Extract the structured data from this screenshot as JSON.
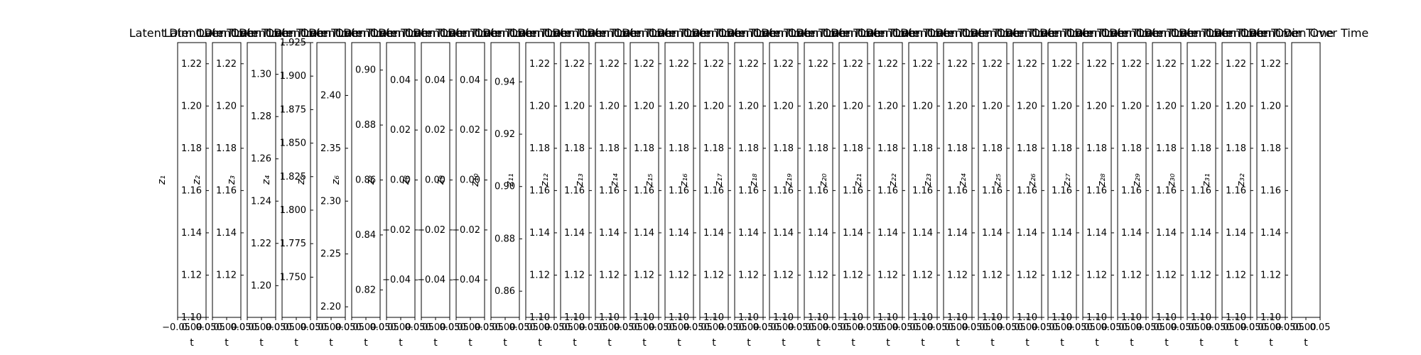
{
  "chart_data": {
    "type": "line",
    "title": "Latent Dim Over Time",
    "xlabel": "t",
    "xlim": [
      -0.05,
      0.05
    ],
    "xtick_labels": [
      "−0.05",
      "0.00",
      "0.05"
    ],
    "panels": [
      {
        "title": "Latent Dim Over Time",
        "ylabel": "z₁",
        "ylim": [
          1.1,
          1.23
        ],
        "yticks": [
          "1.10",
          "1.12",
          "1.14",
          "1.16",
          "1.18",
          "1.20",
          "1.22"
        ]
      },
      {
        "title": "Latent Dim Over Time",
        "ylabel": "z₂",
        "ylim": [
          1.1,
          1.23
        ],
        "yticks": [
          "1.12",
          "1.14",
          "1.16",
          "1.18",
          "1.20",
          "1.22"
        ]
      },
      {
        "title": "Latent Dim Over Time",
        "ylabel": "z₃",
        "ylim": [
          1.185,
          1.315
        ],
        "yticks": [
          "1.20",
          "1.22",
          "1.24",
          "1.26",
          "1.28",
          "1.30"
        ]
      },
      {
        "title": "Latent Dim Over Time",
        "ylabel": "z₄",
        "ylim": [
          1.72,
          1.925
        ],
        "yticks": [
          "1.750",
          "1.775",
          "1.800",
          "1.825",
          "1.850",
          "1.875",
          "1.900",
          "1.925"
        ]
      },
      {
        "title": "Latent Dim Over Time",
        "ylabel": "z₅",
        "ylim": [
          2.19,
          2.45
        ],
        "yticks": [
          "2.20",
          "2.25",
          "2.30",
          "2.35",
          "2.40"
        ]
      },
      {
        "title": "Latent Dim Over Time",
        "ylabel": "z₆",
        "ylim": [
          0.81,
          0.91
        ],
        "yticks": [
          "0.82",
          "0.84",
          "0.86",
          "0.88",
          "0.90"
        ]
      },
      {
        "title": "Latent Dim Over Time",
        "ylabel": "z₇",
        "ylim": [
          -0.055,
          0.055
        ],
        "yticks": [
          "−0.04",
          "−0.02",
          "0.00",
          "0.02",
          "0.04"
        ]
      },
      {
        "title": "Latent Dim Over Time",
        "ylabel": "z₈",
        "ylim": [
          -0.055,
          0.055
        ],
        "yticks": [
          "−0.04",
          "−0.02",
          "0.00",
          "0.02",
          "0.04"
        ]
      },
      {
        "title": "Latent Dim Over Time",
        "ylabel": "z₉",
        "ylim": [
          -0.055,
          0.055
        ],
        "yticks": [
          "−0.04",
          "−0.02",
          "0.00",
          "0.02",
          "0.04"
        ]
      },
      {
        "title": "Latent Dim Over Time",
        "ylabel": "z₁₀",
        "ylim": [
          0.85,
          0.955
        ],
        "yticks": [
          "0.86",
          "0.88",
          "0.90",
          "0.92",
          "0.94"
        ]
      },
      {
        "title": "Latent Dim Over Time",
        "ylabel": "z₁₁",
        "ylim": [
          1.1,
          1.23
        ],
        "yticks": [
          "1.10",
          "1.12",
          "1.14",
          "1.16",
          "1.18",
          "1.20",
          "1.22"
        ]
      },
      {
        "title": "Latent Dim Over Time",
        "ylabel": "z₁₂",
        "ylim": [
          1.1,
          1.23
        ],
        "yticks": [
          "1.10",
          "1.12",
          "1.14",
          "1.16",
          "1.18",
          "1.20",
          "1.22"
        ]
      },
      {
        "title": "Latent Dim Over Time",
        "ylabel": "z₁₃",
        "ylim": [
          1.1,
          1.23
        ],
        "yticks": [
          "1.10",
          "1.12",
          "1.14",
          "1.16",
          "1.18",
          "1.20",
          "1.22"
        ]
      },
      {
        "title": "Latent Dim Over Time",
        "ylabel": "z₁₄",
        "ylim": [
          1.1,
          1.23
        ],
        "yticks": [
          "1.10",
          "1.12",
          "1.14",
          "1.16",
          "1.18",
          "1.20",
          "1.22"
        ]
      },
      {
        "title": "Latent Dim Over Time",
        "ylabel": "z₁₅",
        "ylim": [
          1.1,
          1.23
        ],
        "yticks": [
          "1.10",
          "1.12",
          "1.14",
          "1.16",
          "1.18",
          "1.20",
          "1.22"
        ]
      },
      {
        "title": "Latent Dim Over Time",
        "ylabel": "z₁₆",
        "ylim": [
          1.1,
          1.23
        ],
        "yticks": [
          "1.10",
          "1.12",
          "1.14",
          "1.16",
          "1.18",
          "1.20",
          "1.22"
        ]
      },
      {
        "title": "Latent Dim Over Time",
        "ylabel": "z₁₇",
        "ylim": [
          1.1,
          1.23
        ],
        "yticks": [
          "1.10",
          "1.12",
          "1.14",
          "1.16",
          "1.18",
          "1.20",
          "1.22"
        ]
      },
      {
        "title": "Latent Dim Over Time",
        "ylabel": "z₁₈",
        "ylim": [
          1.1,
          1.23
        ],
        "yticks": [
          "1.10",
          "1.12",
          "1.14",
          "1.16",
          "1.18",
          "1.20",
          "1.22"
        ]
      },
      {
        "title": "Latent Dim Over Time",
        "ylabel": "z₁₉",
        "ylim": [
          1.1,
          1.23
        ],
        "yticks": [
          "1.10",
          "1.12",
          "1.14",
          "1.16",
          "1.18",
          "1.20",
          "1.22"
        ]
      },
      {
        "title": "Latent Dim Over Time",
        "ylabel": "z₂₀",
        "ylim": [
          1.1,
          1.23
        ],
        "yticks": [
          "1.10",
          "1.12",
          "1.14",
          "1.16",
          "1.18",
          "1.20",
          "1.22"
        ]
      },
      {
        "title": "Latent Dim Over Time",
        "ylabel": "z₂₁",
        "ylim": [
          1.1,
          1.23
        ],
        "yticks": [
          "1.10",
          "1.12",
          "1.14",
          "1.16",
          "1.18",
          "1.20",
          "1.22"
        ]
      },
      {
        "title": "Latent Dim Over Time",
        "ylabel": "z₂₂",
        "ylim": [
          1.1,
          1.23
        ],
        "yticks": [
          "1.10",
          "1.12",
          "1.14",
          "1.16",
          "1.18",
          "1.20",
          "1.22"
        ]
      },
      {
        "title": "Latent Dim Over Time",
        "ylabel": "z₂₃",
        "ylim": [
          1.1,
          1.23
        ],
        "yticks": [
          "1.10",
          "1.12",
          "1.14",
          "1.16",
          "1.18",
          "1.20",
          "1.22"
        ]
      },
      {
        "title": "Latent Dim Over Time",
        "ylabel": "z₂₄",
        "ylim": [
          1.1,
          1.23
        ],
        "yticks": [
          "1.10",
          "1.12",
          "1.14",
          "1.16",
          "1.18",
          "1.20",
          "1.22"
        ]
      },
      {
        "title": "Latent Dim Over Time",
        "ylabel": "z₂₅",
        "ylim": [
          1.1,
          1.23
        ],
        "yticks": [
          "1.10",
          "1.12",
          "1.14",
          "1.16",
          "1.18",
          "1.20",
          "1.22"
        ]
      },
      {
        "title": "Latent Dim Over Time",
        "ylabel": "z₂₆",
        "ylim": [
          1.1,
          1.23
        ],
        "yticks": [
          "1.10",
          "1.12",
          "1.14",
          "1.16",
          "1.18",
          "1.20",
          "1.22"
        ]
      },
      {
        "title": "Latent Dim Over Time",
        "ylabel": "z₂₇",
        "ylim": [
          1.1,
          1.23
        ],
        "yticks": [
          "1.10",
          "1.12",
          "1.14",
          "1.16",
          "1.18",
          "1.20",
          "1.22"
        ]
      },
      {
        "title": "Latent Dim Over Time",
        "ylabel": "z₂₈",
        "ylim": [
          1.1,
          1.23
        ],
        "yticks": [
          "1.10",
          "1.12",
          "1.14",
          "1.16",
          "1.18",
          "1.20",
          "1.22"
        ]
      },
      {
        "title": "Latent Dim Over Time",
        "ylabel": "z₂₉",
        "ylim": [
          1.1,
          1.23
        ],
        "yticks": [
          "1.10",
          "1.12",
          "1.14",
          "1.16",
          "1.18",
          "1.20",
          "1.22"
        ]
      },
      {
        "title": "Latent Dim Over Time",
        "ylabel": "z₃₀",
        "ylim": [
          1.1,
          1.23
        ],
        "yticks": [
          "1.10",
          "1.12",
          "1.14",
          "1.16",
          "1.18",
          "1.20",
          "1.22"
        ]
      },
      {
        "title": "Latent Dim Over Time",
        "ylabel": "z₃₁",
        "ylim": [
          1.1,
          1.23
        ],
        "yticks": [
          "1.10",
          "1.12",
          "1.14",
          "1.16",
          "1.18",
          "1.20",
          "1.22"
        ]
      },
      {
        "title": "Latent Dim Over Time",
        "ylabel": "z₃₂",
        "ylim": [
          1.1,
          1.23
        ],
        "yticks": [
          "1.10",
          "1.12",
          "1.14",
          "1.16",
          "1.18",
          "1.20",
          "1.22"
        ]
      },
      {
        "title": "Latent Dim Over Time",
        "ylabel": "",
        "ylim": null,
        "yticks": []
      }
    ]
  }
}
